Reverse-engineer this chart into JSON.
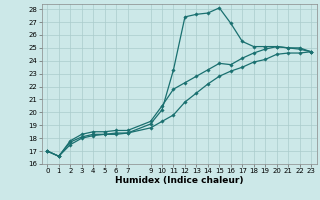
{
  "xlabel": "Humidex (Indice chaleur)",
  "xlim": [
    -0.5,
    23.5
  ],
  "ylim": [
    16,
    28.4
  ],
  "bg_color": "#cce8e8",
  "grid_color": "#aacccc",
  "line_color": "#1a7070",
  "line1_x": [
    0,
    1,
    2,
    3,
    4,
    5,
    6,
    7,
    9,
    10,
    11,
    12,
    13,
    14,
    15,
    16,
    17,
    18,
    19,
    20,
    21,
    22,
    23
  ],
  "line1_y": [
    17.0,
    16.6,
    17.7,
    18.1,
    18.3,
    18.3,
    18.4,
    18.4,
    19.1,
    20.2,
    23.3,
    27.4,
    27.6,
    27.7,
    28.1,
    26.9,
    25.5,
    25.1,
    25.1,
    25.1,
    25.0,
    24.9,
    24.7
  ],
  "line2_x": [
    0,
    1,
    2,
    3,
    4,
    5,
    6,
    7,
    9,
    10,
    11,
    12,
    13,
    14,
    15,
    16,
    17,
    18,
    19,
    20,
    21,
    22,
    23
  ],
  "line2_y": [
    17.0,
    16.6,
    17.8,
    18.3,
    18.5,
    18.5,
    18.6,
    18.6,
    19.3,
    20.5,
    21.8,
    22.3,
    22.8,
    23.3,
    23.8,
    23.7,
    24.2,
    24.6,
    24.9,
    25.1,
    25.0,
    25.0,
    24.7
  ],
  "line3_x": [
    0,
    1,
    2,
    3,
    4,
    5,
    6,
    7,
    9,
    10,
    11,
    12,
    13,
    14,
    15,
    16,
    17,
    18,
    19,
    20,
    21,
    22,
    23
  ],
  "line3_y": [
    17.0,
    16.6,
    17.5,
    18.0,
    18.2,
    18.3,
    18.3,
    18.4,
    18.8,
    19.3,
    19.8,
    20.8,
    21.5,
    22.2,
    22.8,
    23.2,
    23.5,
    23.9,
    24.1,
    24.5,
    24.6,
    24.6,
    24.7
  ],
  "xticks": [
    0,
    1,
    2,
    3,
    4,
    5,
    6,
    7,
    9,
    10,
    11,
    12,
    13,
    14,
    15,
    16,
    17,
    18,
    19,
    20,
    21,
    22,
    23
  ],
  "yticks": [
    16,
    17,
    18,
    19,
    20,
    21,
    22,
    23,
    24,
    25,
    26,
    27,
    28
  ],
  "marker": "D",
  "marker_size": 1.8,
  "line_width": 0.9,
  "tick_fontsize": 5.0,
  "label_fontsize": 6.5
}
